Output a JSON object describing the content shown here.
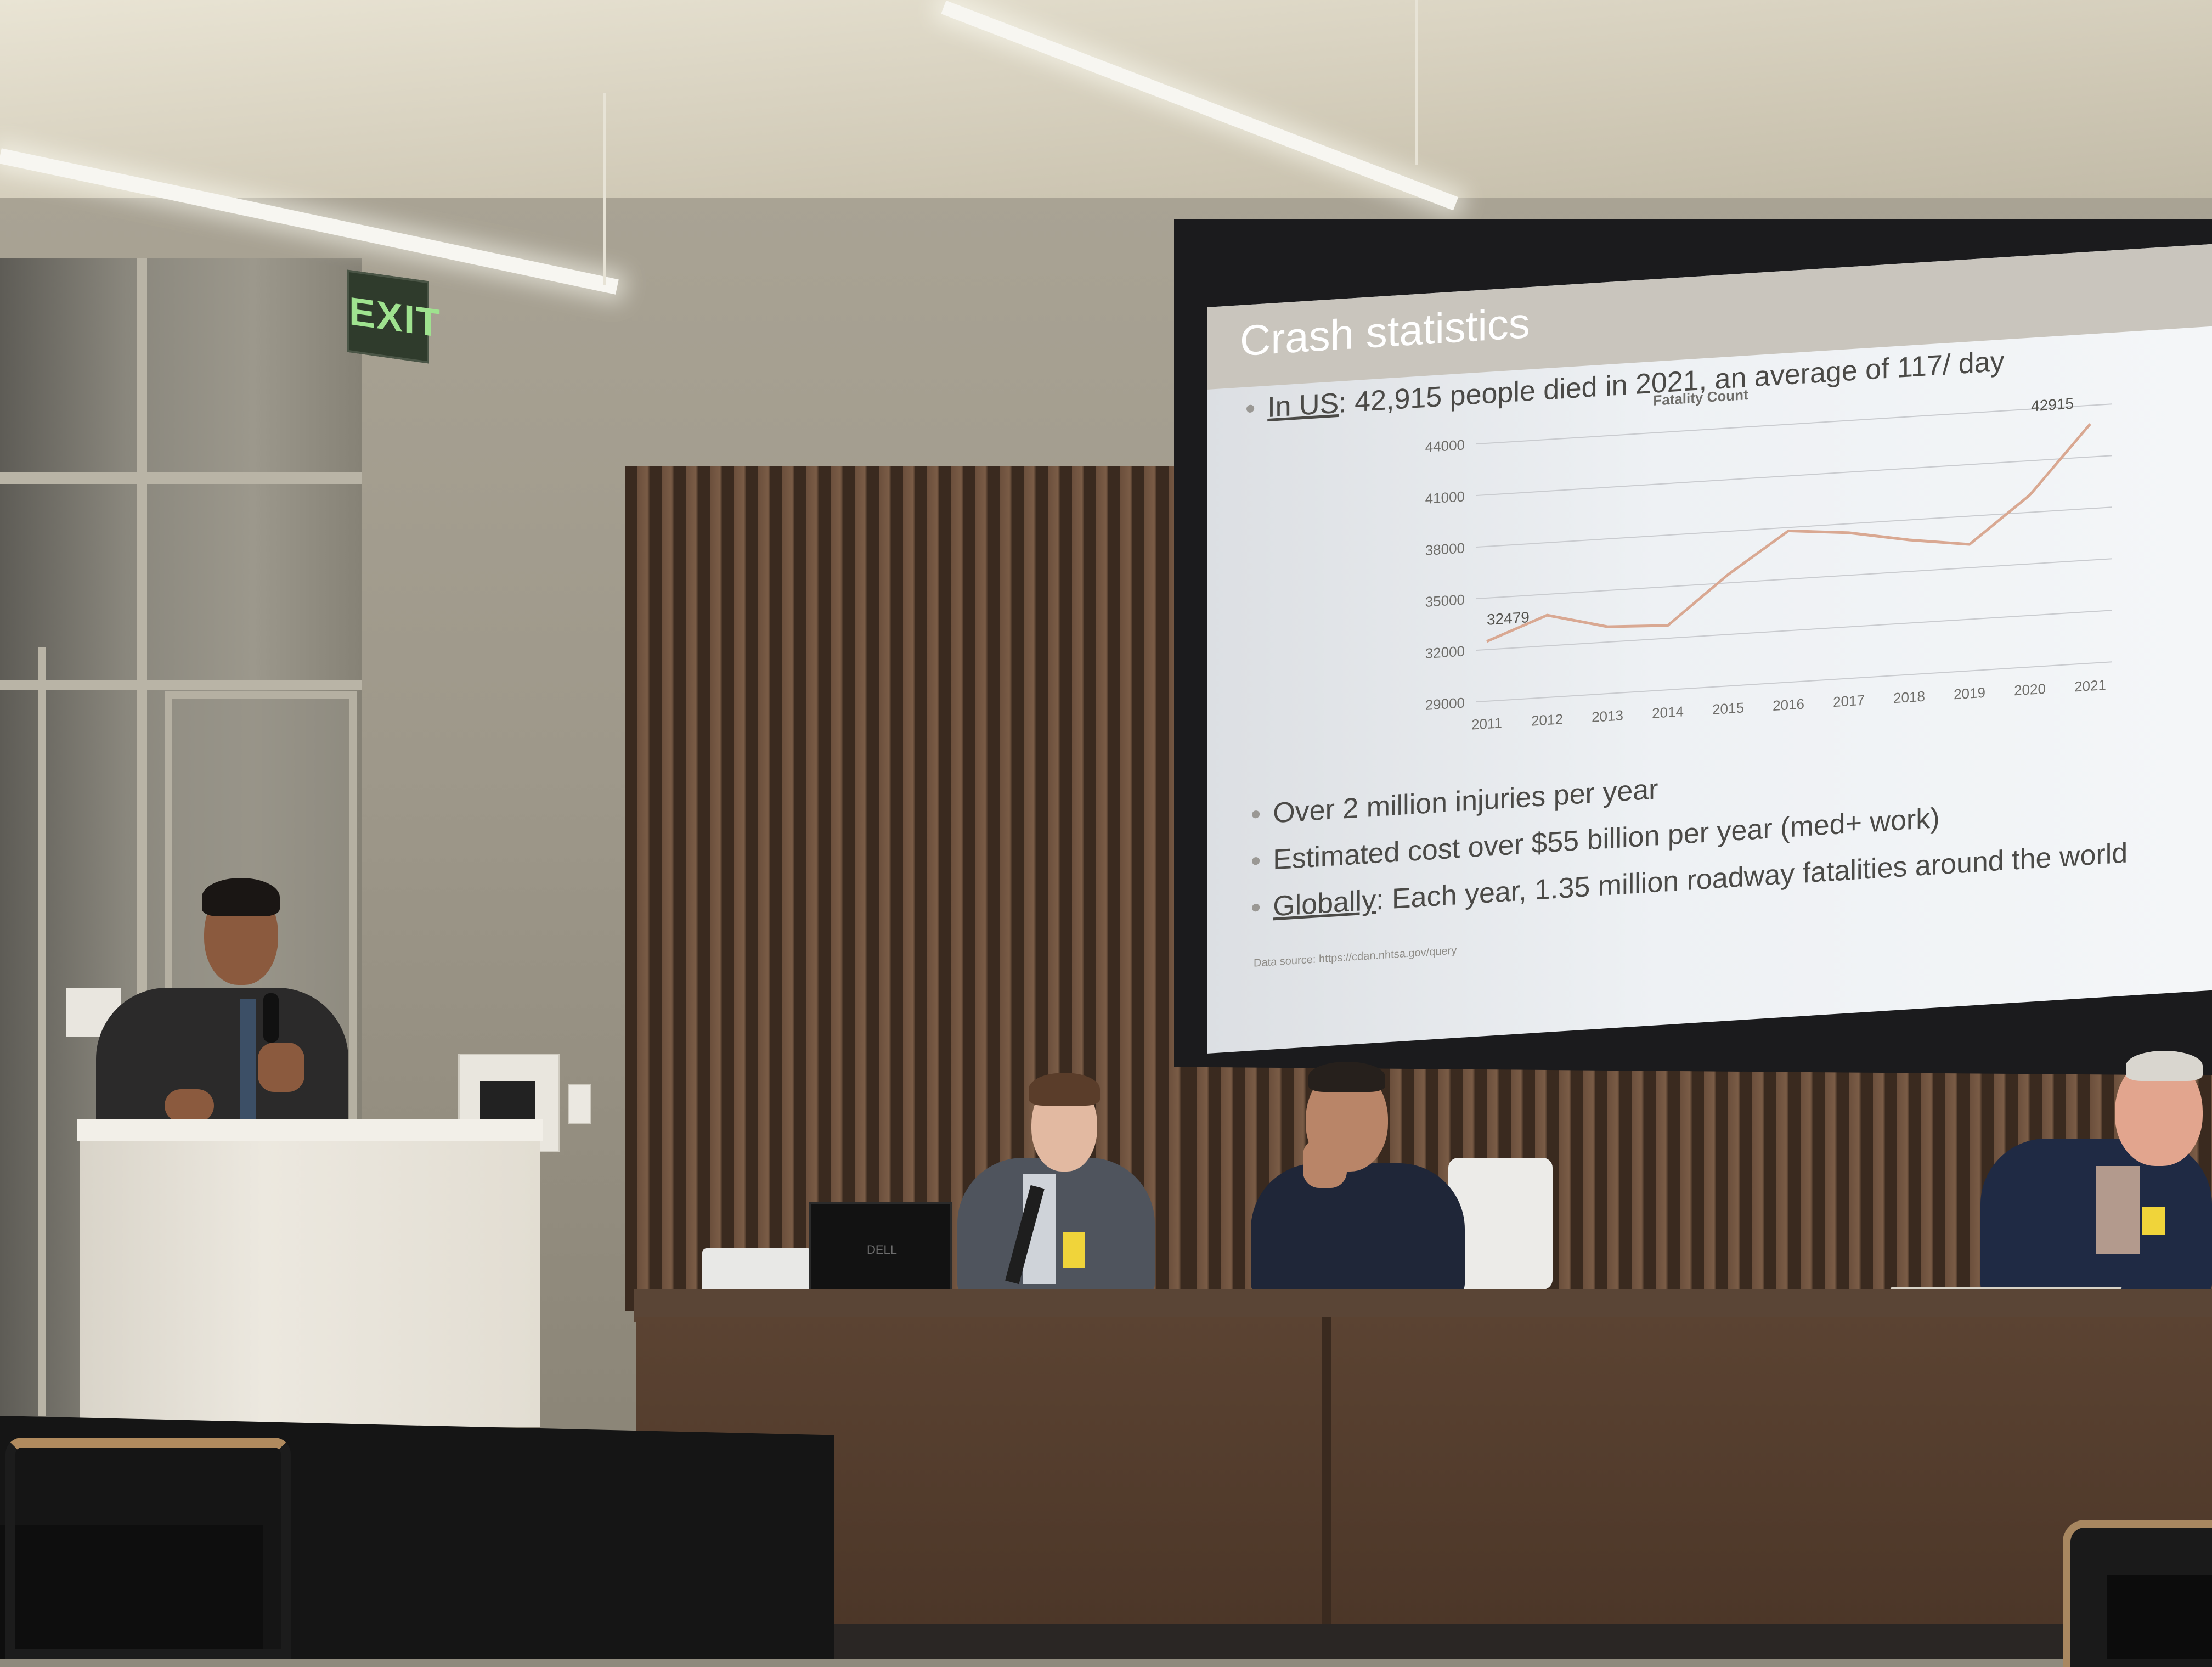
{
  "room": {
    "exit_sign": "EXIT"
  },
  "slide": {
    "title": "Crash statistics",
    "bullets": [
      {
        "underlined": "In US",
        "text": ": 42,915 people died in 2021, an average of 117/ day"
      },
      {
        "underlined": "",
        "text": "Over 2 million injuries per year"
      },
      {
        "underlined": "",
        "text": "Estimated cost over $55 billion per year (med+ work)"
      },
      {
        "underlined": "Globally",
        "text": ": Each year, 1.35 million roadway fatalities around the world"
      }
    ],
    "data_source": "Data source: https://cdan.nhtsa.gov/query"
  },
  "chart_data": {
    "type": "line",
    "title": "Fatality Count",
    "xlabel": "",
    "ylabel": "",
    "categories": [
      "2011",
      "2012",
      "2013",
      "2014",
      "2015",
      "2016",
      "2017",
      "2018",
      "2019",
      "2020",
      "2021"
    ],
    "series": [
      {
        "values": [
          32479,
          33782,
          32893,
          32744,
          35484,
          37806,
          37473,
          36835,
          36355,
          39007,
          42915
        ]
      }
    ],
    "y_ticks": [
      29000,
      32000,
      35000,
      38000,
      41000,
      44000
    ],
    "ylim": [
      29000,
      44000
    ],
    "annotations": [
      {
        "x": "2011",
        "label": "32479"
      },
      {
        "x": "2021",
        "label": "42915"
      }
    ],
    "grid": true,
    "line_color": "#d9a892"
  },
  "devices": {
    "laptop_logo": "DELL"
  }
}
